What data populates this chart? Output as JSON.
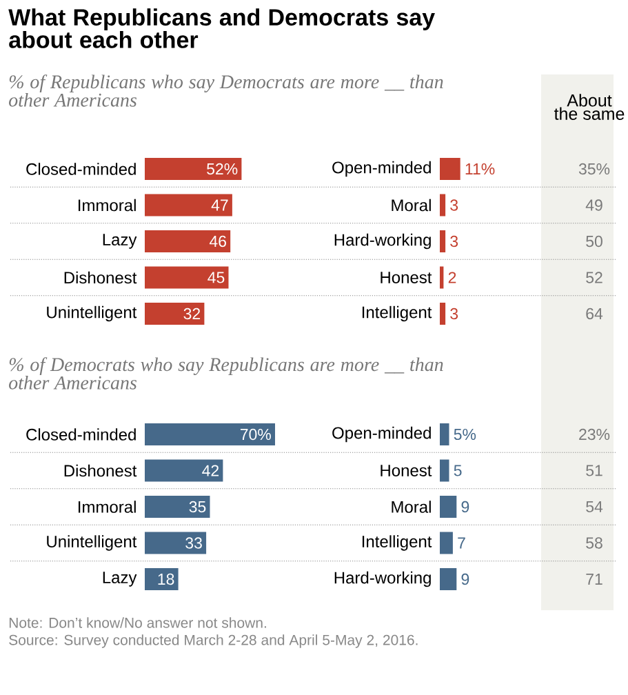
{
  "chart_data": [
    {
      "type": "bar",
      "orientation": "horizontal",
      "title": "What Republicans and Democrats say about each other",
      "subtitle": "% of Republicans who say Democrats are more __ than other Americans",
      "categories": [
        "Closed-minded",
        "Immoral",
        "Lazy",
        "Dishonest",
        "Unintelligent"
      ],
      "values": [
        52,
        47,
        46,
        45,
        32
      ],
      "value_labels": [
        "52%",
        "47",
        "46",
        "45",
        "32"
      ],
      "color": "#c4402f"
    },
    {
      "type": "bar",
      "orientation": "horizontal",
      "categories": [
        "Open-minded",
        "Moral",
        "Hard-working",
        "Honest",
        "Intelligent"
      ],
      "values": [
        11,
        3,
        3,
        2,
        3
      ],
      "value_labels": [
        "11%",
        "3",
        "3",
        "2",
        "3"
      ],
      "color": "#c4402f"
    },
    {
      "type": "other",
      "title": "About the same",
      "values": [
        35,
        49,
        50,
        52,
        64,
        23,
        51,
        54,
        58,
        71
      ],
      "value_labels": [
        "35%",
        "49",
        "50",
        "52",
        "64",
        "23%",
        "51",
        "54",
        "58",
        "71"
      ]
    },
    {
      "type": "bar",
      "orientation": "horizontal",
      "subtitle": "% of Democrats who say Republicans are more __ than other Americans",
      "categories": [
        "Closed-minded",
        "Dishonest",
        "Immoral",
        "Unintelligent",
        "Lazy"
      ],
      "values": [
        70,
        42,
        35,
        33,
        18
      ],
      "value_labels": [
        "70%",
        "42",
        "35",
        "33",
        "18"
      ],
      "color": "#46698a"
    },
    {
      "type": "bar",
      "orientation": "horizontal",
      "categories": [
        "Open-minded",
        "Honest",
        "Moral",
        "Intelligent",
        "Hard-working"
      ],
      "values": [
        5,
        5,
        9,
        7,
        9
      ],
      "value_labels": [
        "5%",
        "5",
        "9",
        "7",
        "9"
      ],
      "color": "#46698a",
      "annotations": [
        "Note: Don’t know/No answer not shown.",
        "Source: Survey conducted March 2-28 and April 5-May 2, 2016."
      ]
    }
  ]
}
